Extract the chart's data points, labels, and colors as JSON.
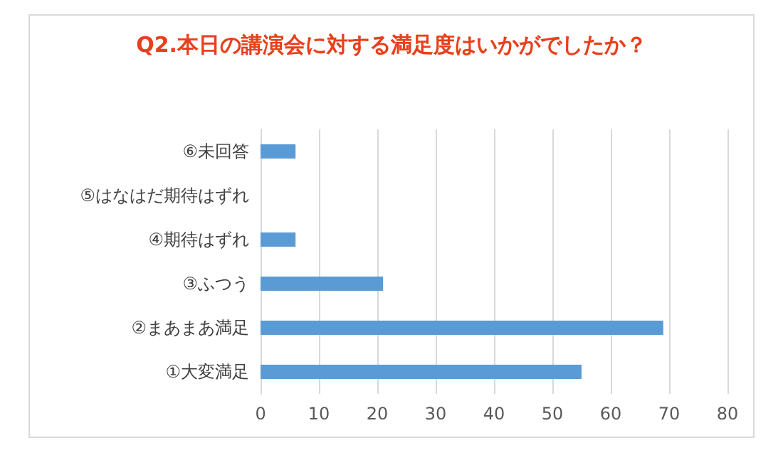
{
  "chart_data": {
    "type": "bar",
    "orientation": "horizontal",
    "title": "Q2.本日の講演会に対する満足度はいかがでしたか？",
    "categories": [
      "⑥未回答",
      "⑤はなはだ期待はずれ",
      "④期待はずれ",
      "③ふつう",
      "②まあまあ満足",
      "①大変満足"
    ],
    "values": [
      6,
      0,
      6,
      21,
      69,
      55
    ],
    "color": "#5b9bd5",
    "xlim": [
      0,
      80
    ],
    "xticks": [
      0,
      10,
      20,
      30,
      40,
      50,
      60,
      70,
      80
    ],
    "grid": "x"
  }
}
